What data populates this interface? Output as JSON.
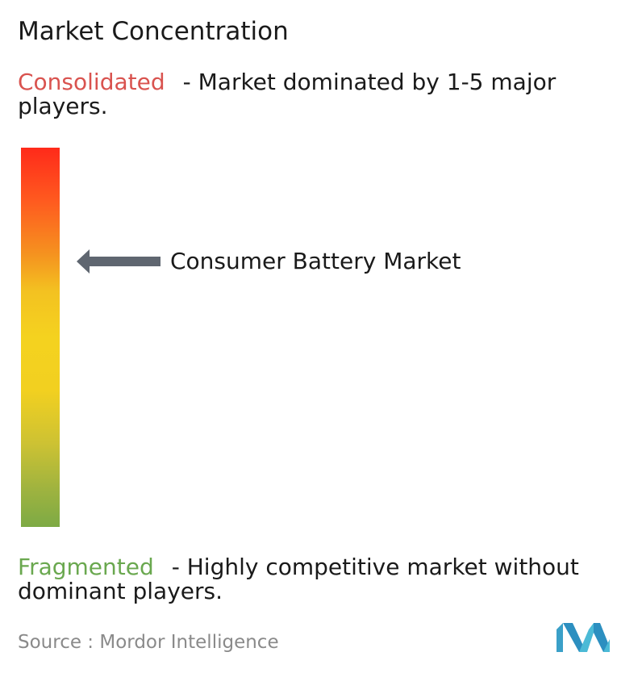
{
  "title": "Market Concentration",
  "scale": {
    "top": {
      "keyword": "Consolidated",
      "description": "- Market dominated by 1-5 major players."
    },
    "bottom": {
      "keyword": "Fragmented",
      "description": "- Highly competitive market without dominant players."
    }
  },
  "chart_data": {
    "type": "gauge",
    "marker_label": "Consumer Battery Market",
    "marker_level": 0.7,
    "scale_top": "Consolidated",
    "scale_bottom": "Fragmented",
    "gradient_colors": [
      "#ff2a1a",
      "#f5921f",
      "#f4d21f",
      "#7daa45"
    ]
  },
  "source": "Source :  Mordor Intelligence",
  "colors": {
    "consolidated": "#d9534f",
    "fragmented": "#6aa84f",
    "arrow": "#5f6670",
    "logo": "#3aa0c8"
  },
  "icons": {
    "marker": "left-arrow-icon",
    "logo": "mordor-intelligence-logo-icon"
  }
}
